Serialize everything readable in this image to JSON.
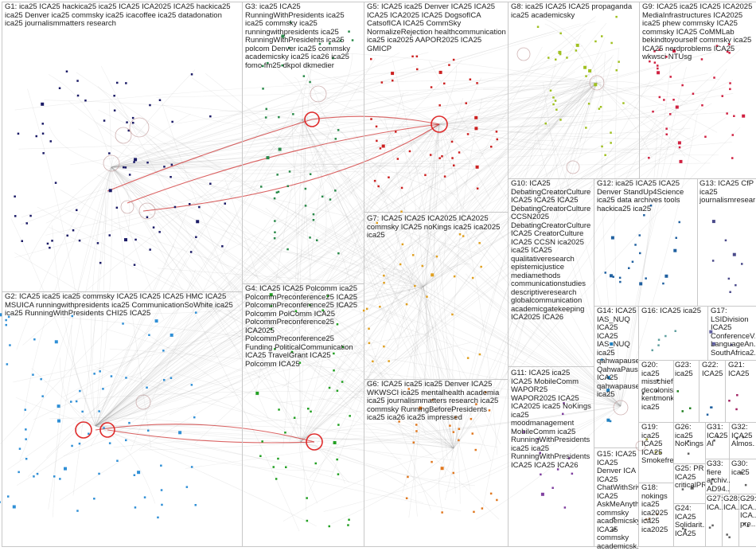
{
  "groups": [
    {
      "id": "G1",
      "label": "G1: ica25 ICA25 hackica25 ica25 ICA25 ICA2025 ICA25 hackica25 ica25 Denver ica25 commsky ica25 icacoffee ica25 datadonation ica25 journalismmatters research",
      "color": "#1a1a66"
    },
    {
      "id": "G2",
      "label": "G2: ICA25 ica25 ica25 commsky ICA25 ICA25 ICA25 HMC ICA25 MSUICA runningwithpresidents ica25 CommunicationSoWhite ica25 ica25 RunningWithPresidents CHI25 ICA25",
      "color": "#2f8fd6"
    },
    {
      "id": "G3",
      "label": "G3: ica25 ICA25 RunningWithPresidents ica25 ica25 commsky ica25 runningwithpresidents ica25 RunningWithPresidehts ica25 polcom Denver ica25 commsky academicsky ica25 ica26 ica25 fomo fm25 dkpol dkmedier",
      "color": "#2a8a4a"
    },
    {
      "id": "G4",
      "label": "G4: ICA25 ICA25 Polcomm ica25 PolcommPreconference25 ICA25 PolcommPreconference25 ICA25 Polcomm PolComm ICA25 PolcommPreconference25 ICA2025 PolcommPreconference25 Funding PoliticalCommunication ICA25 TravelGrant ICA25 Polcomm ICA25",
      "color": "#22a022"
    },
    {
      "id": "G5",
      "label": "G5: ICA25 ica25 Denver ICA25 ICA25 ICA25 ICA2025 ICA25 DogsofICA CatsofICA ICA25 CommSky NormalizeRejection healthcommunication ica25 ica2025 AAPOR2025 ICA25 GMICP",
      "color": "#cc2020"
    },
    {
      "id": "G6",
      "label": "G6: ICA25 ica25 ica25 Denver ICA25 WKWSCI ica25 mentalhealth academia ica25 journalismmatters research ica25 commsky RunningBeforePresidents ica25 ica26 ica25 impressed",
      "color": "#e07820"
    },
    {
      "id": "G7",
      "label": "G7: ICA25 ICA25 ICA2025 ICA2025 commsky ICA25 noKings ica25 ica2025 ica25",
      "color": "#e0a020"
    },
    {
      "id": "G8",
      "label": "G8: ica25 ICA25 ICA25 propaganda ica25 academicsky",
      "color": "#a0c020"
    },
    {
      "id": "G9",
      "label": "G9: ICA25 ica25 ICA25 ICA2025 MediaInfrastructures ICA2025 ica25 phew commsky ICA25 commsky ICA25 CoMMLab bekindtoyourself commsky ica25 ICA25 nerdproblems ICA25 wkwsci NTUsg",
      "color": "#d02040"
    },
    {
      "id": "G10",
      "label": "G10: ICA25 DebatingCreatorCulture ICA25 ICA25 ICA25 DebatingCreatorCulture CCSN2025 DebatingCreatorCulture ICA25 CreatorCulture ICA25 CCSN ica2025 ica25 ICA25 qualitativeresearch epistemicjustice mediamethods communicationstudies descriptiveresearch globalcommunication academicgatekeeping ICA2025 ICA26",
      "color": "#888888"
    },
    {
      "id": "G11",
      "label": "G11: ICA25 ica25 ICA25 MobileComm WAPOR25 WAPOR2025 ICA25 ICA2025 ica25 NoKings ica25 moodmanagement MobileComm ica25 RunningWithPresidents ica25 ica25 RunningWithPresidents ICA25 ICA25 ICA26",
      "color": "#8040a0"
    },
    {
      "id": "G12",
      "label": "G12: ica25 ICA25 ICA25 Denver StandUp4Science ica25 data archives tools hackica25 ica25",
      "color": "#2060a0"
    },
    {
      "id": "G13",
      "label": "G13: ICA25 CfP ica25 journalismresear...",
      "color": "#4a4a8a"
    },
    {
      "id": "G14",
      "label": "G14: ICA25 IAS_NUQ ICA25 ICA25 IAS_NUQ ica25 qahwapause QahwaPause ICA25 qahwapause ica25",
      "color": "#2080c0"
    },
    {
      "id": "G15",
      "label": "G15: ICA25 ICA25 Denver ICA ICA25 ChatWithSrivi ICA25 AskMeAnyth... commsky academicsky ICA25 commsky academicsk...",
      "color": "#606060"
    },
    {
      "id": "G16",
      "label": "G16: ICA25 ica25",
      "color": "#60a0a0"
    },
    {
      "id": "G17",
      "label": "G17: LSIDivision ICA25 ConferenceV... LanguageAn... SouthAfrica2...",
      "color": "#6060a0"
    },
    {
      "id": "G18",
      "label": "G18: nokings ica25 ica2025 ica25 ica2025",
      "color": "#806040"
    },
    {
      "id": "G19",
      "label": "G19: ica25 ICA25 ICA25 Smokefree",
      "color": "#a0a040"
    },
    {
      "id": "G20",
      "label": "G20: ica25 misschief decolonis... kentmonk... ica25",
      "color": "#4a4a4a"
    },
    {
      "id": "G21",
      "label": "G21: ICA25",
      "color": "#a02060"
    },
    {
      "id": "G22",
      "label": "G22: ICA25",
      "color": "#2060a0"
    },
    {
      "id": "G23",
      "label": "G23: ica25",
      "color": "#208020"
    },
    {
      "id": "G24",
      "label": "G24: ICA25 Solidarit... ICA25",
      "color": "#606060"
    },
    {
      "id": "G25",
      "label": "G25: PR ICA25 criticalPR",
      "color": "#606060"
    },
    {
      "id": "G26",
      "label": "G26: ica25 NoKings",
      "color": "#606060"
    },
    {
      "id": "G27",
      "label": "G27: ICA...",
      "color": "#606060"
    },
    {
      "id": "G28",
      "label": "G28: ICA...",
      "color": "#606060"
    },
    {
      "id": "G29",
      "label": "G29: ICA... ICA... pre...",
      "color": "#606060"
    },
    {
      "id": "G30",
      "label": "G30: ica25",
      "color": "#606060"
    },
    {
      "id": "G31",
      "label": "G31: ICA25 AI",
      "color": "#606060"
    },
    {
      "id": "G32",
      "label": "G32: ICA25 Almos...",
      "color": "#606060"
    },
    {
      "id": "G33",
      "label": "G33: fiere archiv... AD94...",
      "color": "#606060"
    }
  ]
}
